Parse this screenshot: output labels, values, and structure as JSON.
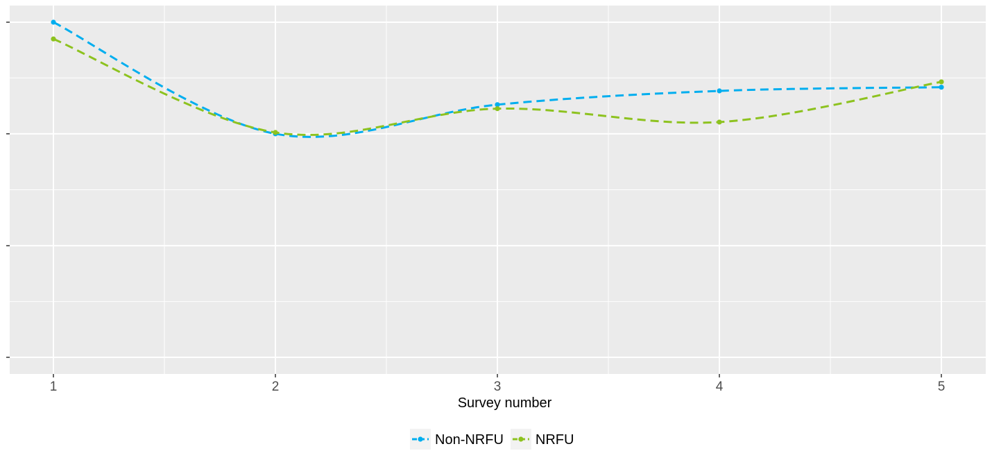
{
  "chart_data": {
    "type": "line",
    "title": "",
    "xlabel": "Survey number",
    "ylabel": "",
    "x": [
      1,
      2,
      3,
      4,
      5
    ],
    "x_tick_labels": [
      "1",
      "2",
      "3",
      "4",
      "5"
    ],
    "ylim": [
      0,
      1
    ],
    "y_major_ticks": [
      0,
      0.333,
      0.667,
      1.0
    ],
    "grid": true,
    "legend_position": "bottom",
    "series": [
      {
        "name": "Non-NRFU",
        "values": [
          1.0,
          0.667,
          0.754,
          0.795,
          0.806
        ],
        "color": "#00AEEF",
        "line_style": "dashed"
      },
      {
        "name": "NRFU",
        "values": [
          0.95,
          0.671,
          0.742,
          0.702,
          0.822
        ],
        "color": "#8DC21F",
        "line_style": "dashed"
      }
    ]
  },
  "colors": {
    "panel_background": "#EBEBEB",
    "grid_line": "#FFFFFF",
    "axis_text": "#4D4D4D",
    "axis_title": "#000000"
  }
}
